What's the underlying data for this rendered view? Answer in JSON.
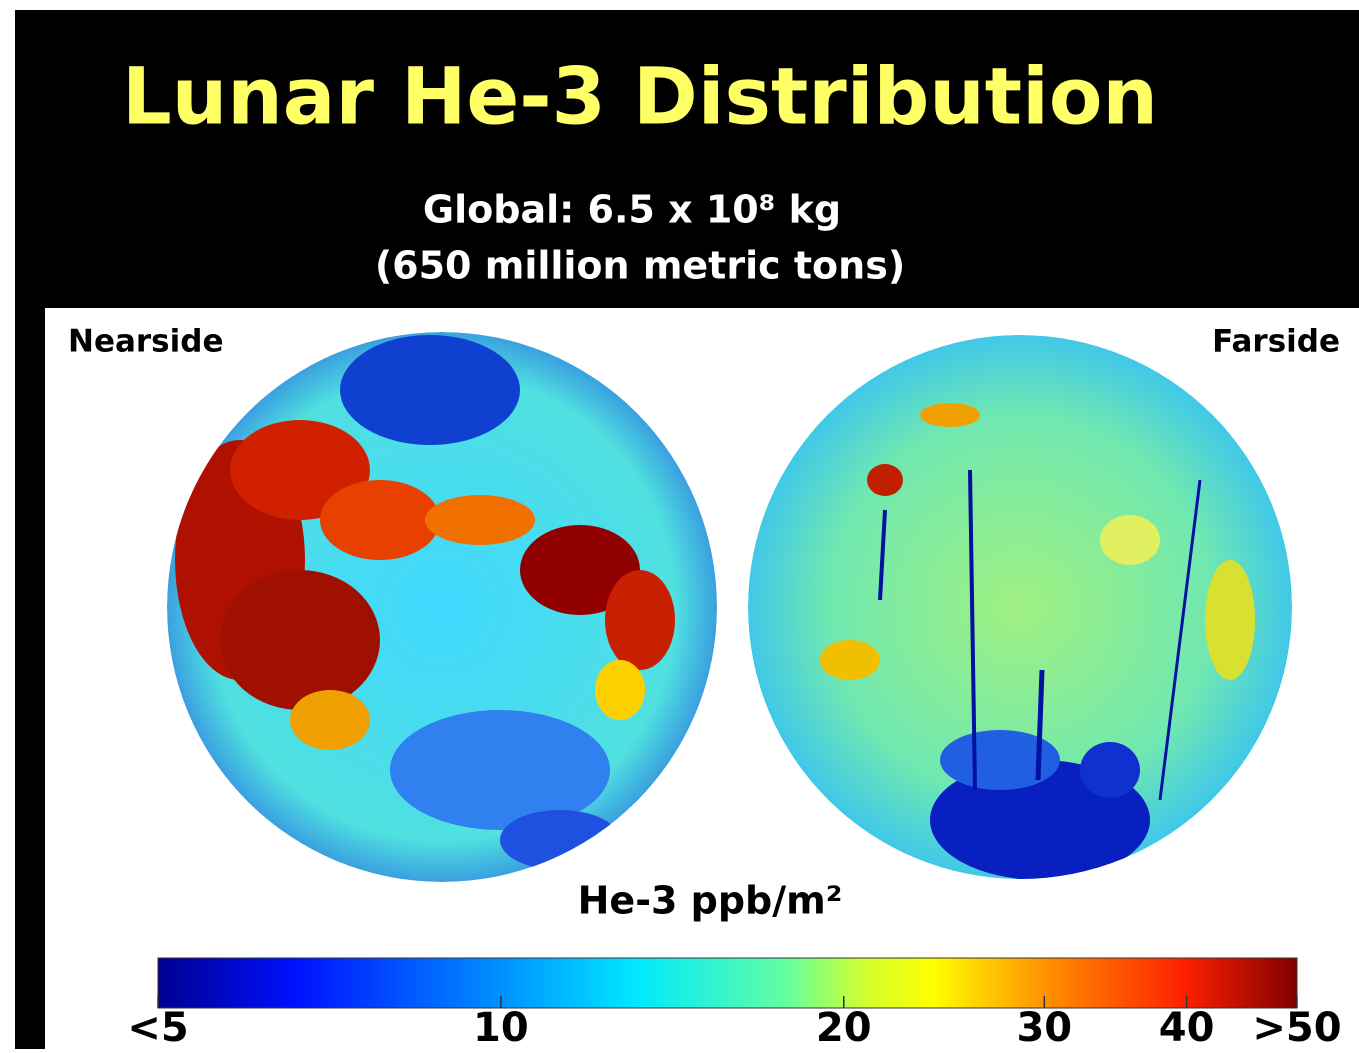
{
  "header": {
    "title": "Lunar He-3 Distribution",
    "subtitle": [
      "Global: 6.5 x 10⁸ kg",
      "(650 million metric tons)"
    ]
  },
  "maps": {
    "nearside_label": "Nearside",
    "farside_label": "Farside"
  },
  "colorbar": {
    "label": "He-3 ppb/m²",
    "scale": "log",
    "lim": [
      5,
      50
    ],
    "ticks": [
      {
        "value": 5,
        "label": "<5"
      },
      10,
      20,
      30,
      40,
      {
        "value": 50,
        "label": ">50"
      }
    ]
  }
}
